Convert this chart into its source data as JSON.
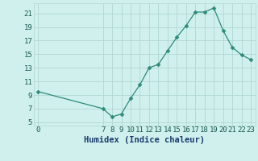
{
  "x": [
    0,
    7,
    8,
    9,
    10,
    11,
    12,
    13,
    14,
    15,
    16,
    17,
    18,
    19,
    20,
    21,
    22,
    23
  ],
  "y": [
    9.5,
    7.0,
    5.8,
    6.2,
    8.5,
    10.5,
    13.0,
    13.5,
    15.5,
    17.5,
    19.2,
    21.2,
    21.2,
    21.8,
    18.5,
    16.0,
    14.9,
    14.2
  ],
  "xlabel": "Humidex (Indice chaleur)",
  "xlim": [
    -0.5,
    23.5
  ],
  "ylim": [
    4.5,
    22.5
  ],
  "yticks": [
    5,
    7,
    9,
    11,
    13,
    15,
    17,
    19,
    21
  ],
  "xticks": [
    0,
    7,
    8,
    9,
    10,
    11,
    12,
    13,
    14,
    15,
    16,
    17,
    18,
    19,
    20,
    21,
    22,
    23
  ],
  "line_color": "#2d8b7a",
  "bg_color": "#cff0ec",
  "grid_color": "#b0d8d2",
  "xlabel_color": "#1a3a6e",
  "tick_color": "#1a5a50",
  "xlabel_fontsize": 7.5,
  "tick_fontsize": 6.5
}
